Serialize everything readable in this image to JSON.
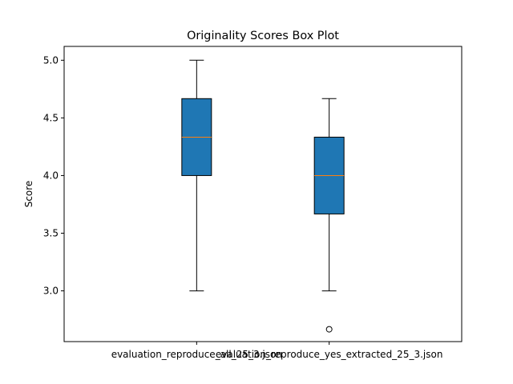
{
  "chart_data": {
    "type": "boxplot",
    "title": "Originality Scores Box Plot",
    "xlabel": "",
    "ylabel": "Score",
    "ylim": [
      2.56,
      5.12
    ],
    "yticks": [
      "3.0",
      "3.5",
      "4.0",
      "4.5",
      "5.0"
    ],
    "grid": false,
    "categories": [
      "evaluation_reproduce_all_25_3.json",
      "evaluation_reproduce_yes_extracted_25_3.json"
    ],
    "boxes": [
      {
        "whisker_low": 3.0,
        "q1": 4.0,
        "median": 4.333,
        "q3": 4.667,
        "whisker_high": 5.0,
        "outliers": []
      },
      {
        "whisker_low": 3.0,
        "q1": 3.667,
        "median": 4.0,
        "q3": 4.333,
        "whisker_high": 4.667,
        "outliers": [
          2.667
        ]
      }
    ],
    "colors": {
      "box_fill": "#1f77b4",
      "median": "#ff7f0e",
      "line": "#000000"
    }
  }
}
